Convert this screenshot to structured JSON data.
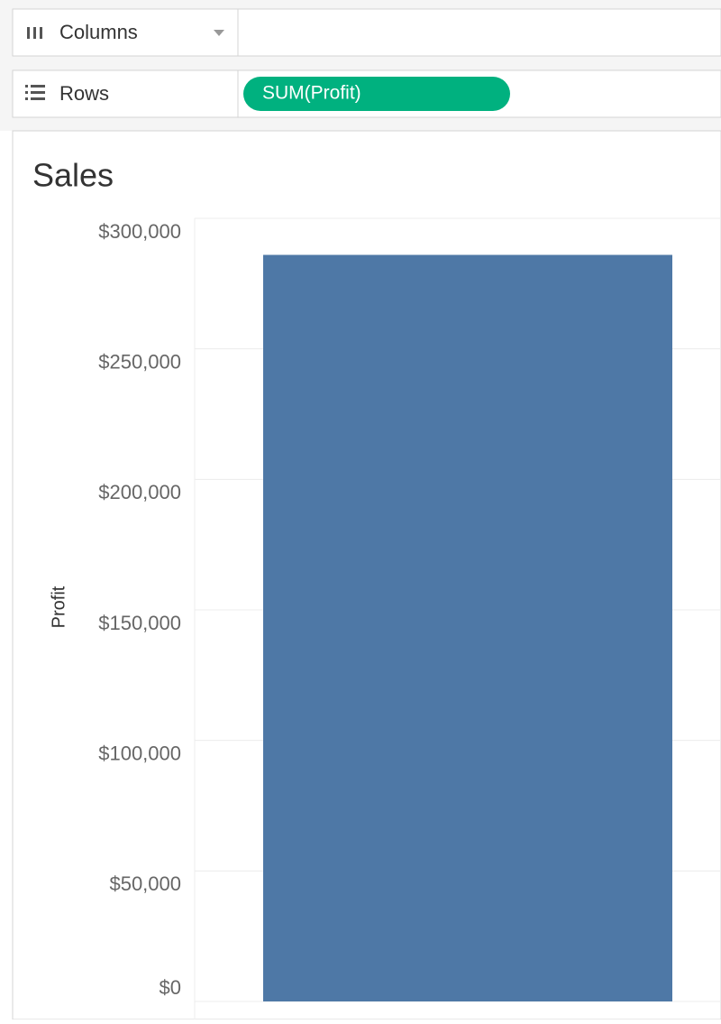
{
  "shelves": {
    "columns": {
      "label": "Columns"
    },
    "rows": {
      "label": "Rows",
      "pill": "SUM(Profit)"
    }
  },
  "chart_data": {
    "type": "bar",
    "title": "Sales",
    "y_label": "Profit",
    "categories": [
      null
    ],
    "values": [
      286000
    ],
    "color": "#4e78a6",
    "ylim": [
      0,
      300000
    ],
    "yticks": [
      {
        "value": 0,
        "label": "$0"
      },
      {
        "value": 50000,
        "label": "$50,000"
      },
      {
        "value": 100000,
        "label": "$100,000"
      },
      {
        "value": 150000,
        "label": "$150,000"
      },
      {
        "value": 200000,
        "label": "$200,000"
      },
      {
        "value": 250000,
        "label": "$250,000"
      },
      {
        "value": 300000,
        "label": "$300,000"
      }
    ],
    "grid": true
  }
}
